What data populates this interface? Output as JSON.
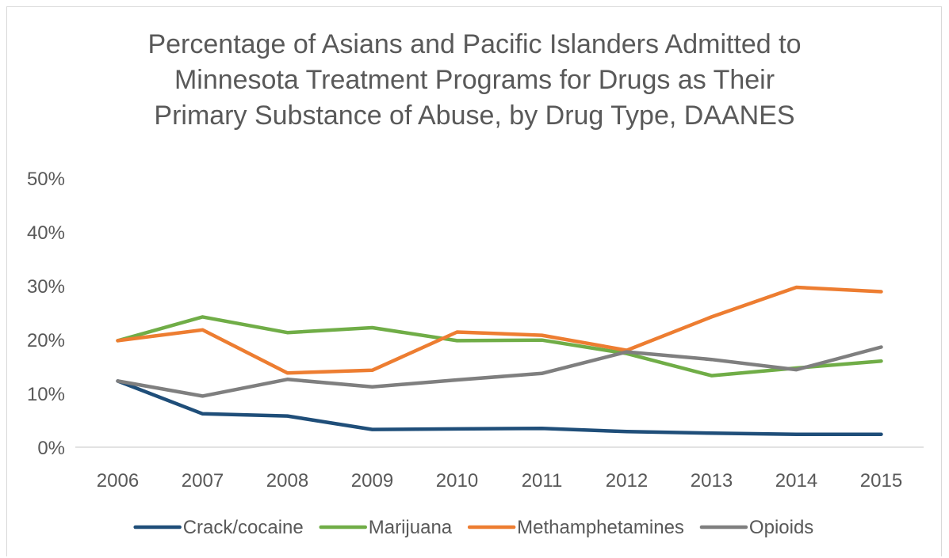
{
  "chart_data": {
    "type": "line",
    "title_lines": [
      "Percentage of Asians and Pacific Islanders Admitted to",
      "Minnesota Treatment Programs for Drugs as Their",
      "Primary Substance of Abuse, by Drug Type, DAANES"
    ],
    "categories": [
      "2006",
      "2007",
      "2008",
      "2009",
      "2010",
      "2011",
      "2012",
      "2013",
      "2014",
      "2015"
    ],
    "ylim": [
      0,
      50
    ],
    "yticks": [
      0,
      10,
      20,
      30,
      40,
      50
    ],
    "ytick_labels": [
      "0%",
      "10%",
      "20%",
      "30%",
      "40%",
      "50%"
    ],
    "grid": false,
    "legend_position": "bottom",
    "series": [
      {
        "name": "Crack/cocaine",
        "color": "#1f4e79",
        "values": [
          12.3,
          6.2,
          5.8,
          3.3,
          3.4,
          3.5,
          2.9,
          2.6,
          2.4,
          2.4
        ]
      },
      {
        "name": "Marijuana",
        "color": "#70ad47",
        "values": [
          19.8,
          24.2,
          21.3,
          22.2,
          19.8,
          19.9,
          17.4,
          13.3,
          14.7,
          16.0
        ]
      },
      {
        "name": "Methamphetamines",
        "color": "#ed7d31",
        "values": [
          19.8,
          21.8,
          13.8,
          14.3,
          21.4,
          20.8,
          18.0,
          24.2,
          29.7,
          28.9
        ]
      },
      {
        "name": "Opioids",
        "color": "#7f7f7f",
        "values": [
          12.3,
          9.5,
          12.6,
          11.2,
          12.5,
          13.7,
          17.7,
          16.3,
          14.4,
          18.6
        ]
      }
    ]
  }
}
